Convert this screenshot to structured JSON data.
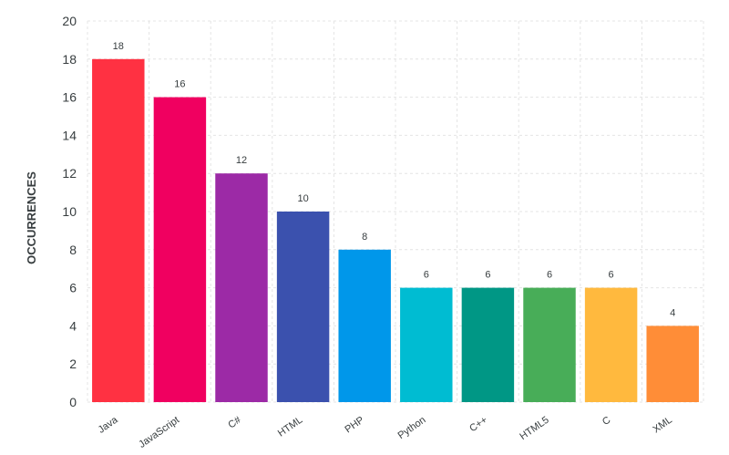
{
  "chart_data": {
    "type": "bar",
    "categories": [
      "Java",
      "JavaScript",
      "C#",
      "HTML",
      "PHP",
      "Python",
      "C++",
      "HTML5",
      "C",
      "XML"
    ],
    "values": [
      18,
      16,
      12,
      10,
      8,
      6,
      6,
      6,
      6,
      4
    ],
    "colors": [
      "#ff3142",
      "#f00060",
      "#9c2aa6",
      "#3b51ae",
      "#0097ea",
      "#00bcd2",
      "#009785",
      "#48ad58",
      "#ffb93e",
      "#ff8d37"
    ],
    "ylabel": "OCCURRENCES",
    "xlabel": "",
    "title": "",
    "ylim": [
      0,
      20
    ],
    "yticks": [
      0,
      2,
      4,
      6,
      8,
      10,
      12,
      14,
      16,
      18,
      20
    ],
    "grid": true,
    "data_labels": true
  }
}
